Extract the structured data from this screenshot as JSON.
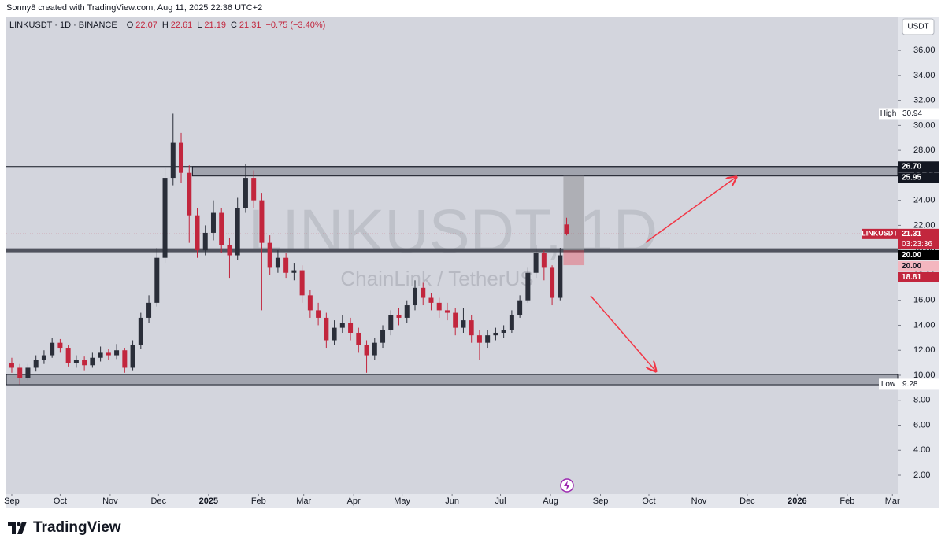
{
  "header": {
    "credit": "Sonny8 created with TradingView.com, Aug 11, 2025 22:36 UTC+2"
  },
  "footer": {
    "brand": "TradingView"
  },
  "chart_data": {
    "type": "candlestick",
    "symbol": "LINKUSDT · 1D · BINANCE",
    "legend": {
      "o": "O",
      "h": "H",
      "l": "L",
      "c": "C",
      "change": "−0.75 (−3.40%)"
    },
    "watermark": "LINKUSDT, 1D",
    "watermark_sub": "ChainLink / TetherUS",
    "currency": "USDT",
    "up_color": "#2a2e39",
    "down_color": "#c2263d",
    "x": [
      0,
      5,
      10,
      15,
      20,
      25,
      30,
      35,
      40,
      45,
      50,
      55,
      60,
      65,
      70,
      75,
      80,
      85,
      90,
      95,
      100,
      105,
      110,
      115,
      120,
      125,
      130,
      135,
      140,
      145,
      150,
      155,
      160,
      165,
      170,
      175,
      180,
      185,
      190,
      195,
      200,
      205,
      210,
      215,
      220,
      225,
      230,
      235,
      240,
      245,
      250,
      255,
      260,
      265,
      270,
      275,
      280,
      285,
      290,
      295,
      300,
      305,
      310,
      315,
      320,
      325,
      330,
      335,
      340,
      344
    ],
    "open": [
      11.0,
      10.6,
      9.8,
      10.6,
      11.2,
      11.6,
      12.6,
      12.2,
      11.0,
      11.2,
      10.8,
      11.4,
      11.8,
      11.6,
      12.0,
      10.6,
      12.4,
      14.6,
      15.8,
      19.4,
      25.8,
      28.6,
      26.2,
      22.8,
      20.0,
      21.4,
      23.0,
      20.4,
      19.6,
      23.4,
      25.8,
      24.0,
      20.6,
      18.6,
      19.4,
      18.2,
      18.4,
      16.4,
      15.2,
      14.6,
      12.8,
      13.8,
      14.2,
      13.4,
      12.4,
      11.6,
      12.6,
      13.6,
      14.8,
      14.6,
      15.6,
      17.0,
      16.2,
      15.8,
      15.2,
      15.0,
      13.8,
      14.4,
      13.2,
      12.6,
      13.2,
      13.4,
      13.6,
      14.8,
      16.0,
      18.2,
      19.8,
      18.6,
      16.2,
      22.07
    ],
    "high": [
      11.4,
      10.9,
      10.9,
      11.6,
      12.0,
      13.0,
      12.9,
      12.4,
      11.6,
      11.5,
      11.8,
      12.3,
      12.1,
      12.5,
      12.2,
      12.8,
      15.0,
      16.4,
      20.2,
      26.6,
      30.94,
      29.4,
      26.8,
      23.4,
      22.0,
      24.0,
      23.4,
      21.0,
      24.2,
      26.9,
      26.4,
      24.6,
      21.2,
      20.0,
      19.8,
      19.0,
      18.8,
      16.8,
      15.8,
      15.0,
      14.4,
      14.8,
      14.6,
      13.8,
      12.8,
      13.0,
      14.0,
      15.2,
      15.4,
      16.0,
      17.6,
      17.4,
      16.6,
      16.2,
      15.8,
      15.4,
      15.4,
      14.8,
      13.6,
      13.6,
      13.8,
      14.0,
      15.2,
      16.4,
      18.6,
      20.4,
      20.0,
      18.8,
      20.2,
      22.61
    ],
    "low": [
      10.2,
      9.28,
      9.6,
      10.3,
      10.9,
      11.4,
      11.8,
      10.7,
      10.6,
      10.4,
      10.6,
      11.1,
      11.2,
      11.3,
      10.2,
      10.4,
      12.1,
      14.2,
      15.5,
      19.0,
      25.2,
      25.4,
      20.6,
      19.4,
      19.6,
      20.8,
      19.8,
      17.8,
      19.2,
      23.0,
      23.4,
      15.2,
      18.0,
      18.2,
      17.8,
      17.6,
      15.8,
      14.6,
      14.0,
      12.2,
      12.4,
      13.4,
      12.8,
      11.8,
      10.2,
      11.2,
      12.2,
      13.2,
      14.0,
      14.2,
      15.2,
      15.6,
      15.2,
      14.6,
      14.4,
      13.2,
      13.4,
      12.6,
      11.2,
      12.2,
      12.8,
      13.0,
      13.4,
      14.6,
      15.8,
      17.8,
      17.6,
      15.6,
      16.0,
      21.19
    ],
    "close": [
      10.6,
      9.8,
      10.6,
      11.2,
      11.6,
      12.6,
      12.2,
      11.0,
      11.2,
      10.8,
      11.4,
      11.8,
      11.6,
      12.0,
      10.6,
      12.4,
      14.6,
      15.8,
      19.4,
      25.8,
      28.6,
      26.2,
      22.8,
      20.0,
      21.4,
      23.0,
      20.4,
      19.6,
      23.4,
      25.8,
      24.0,
      20.6,
      18.6,
      19.4,
      18.2,
      18.4,
      16.4,
      15.2,
      14.6,
      12.8,
      13.8,
      14.2,
      13.4,
      12.4,
      11.6,
      12.6,
      13.6,
      14.8,
      14.6,
      15.6,
      17.0,
      16.2,
      15.8,
      15.2,
      15.0,
      13.8,
      14.4,
      13.2,
      12.6,
      13.2,
      13.4,
      13.6,
      14.8,
      16.0,
      18.2,
      19.8,
      18.6,
      16.2,
      19.6,
      21.31
    ],
    "xlim": [
      -3.4,
      549.3
    ],
    "xticks": [
      {
        "value": 0,
        "label": "Sep"
      },
      {
        "value": 30,
        "label": "Oct"
      },
      {
        "value": 61,
        "label": "Nov"
      },
      {
        "value": 91,
        "label": "Dec"
      },
      {
        "value": 122,
        "label": "2025"
      },
      {
        "value": 153,
        "label": "Feb"
      },
      {
        "value": 181,
        "label": "Mar"
      },
      {
        "value": 212,
        "label": "Apr"
      },
      {
        "value": 242,
        "label": "May"
      },
      {
        "value": 273,
        "label": "Jun"
      },
      {
        "value": 303,
        "label": "Jul"
      },
      {
        "value": 334,
        "label": "Aug"
      },
      {
        "value": 365,
        "label": "Sep"
      },
      {
        "value": 395,
        "label": "Oct"
      },
      {
        "value": 426,
        "label": "Nov"
      },
      {
        "value": 456,
        "label": "Dec"
      },
      {
        "value": 487,
        "label": "2026"
      },
      {
        "value": 518,
        "label": "Feb"
      },
      {
        "value": 546,
        "label": "Mar"
      }
    ],
    "ylim": [
      0.49,
      38.65
    ],
    "yticks": [
      {
        "value": 2,
        "label": "2.00"
      },
      {
        "value": 4,
        "label": "4.00"
      },
      {
        "value": 6,
        "label": "6.00"
      },
      {
        "value": 8,
        "label": "8.00"
      },
      {
        "value": 10,
        "label": "10.00"
      },
      {
        "value": 12,
        "label": "12.00"
      },
      {
        "value": 14,
        "label": "14.00"
      },
      {
        "value": 16,
        "label": "16.00"
      },
      {
        "value": 18,
        "label": "18.00"
      },
      {
        "value": 20,
        "label": "20.00"
      },
      {
        "value": 22,
        "label": "22.00"
      },
      {
        "value": 24,
        "label": "24.00"
      },
      {
        "value": 26,
        "label": "26.00"
      },
      {
        "value": 28,
        "label": "28.00"
      },
      {
        "value": 30,
        "label": "30.00"
      },
      {
        "value": 32,
        "label": "32.00"
      },
      {
        "value": 34,
        "label": "34.00"
      },
      {
        "value": 36,
        "label": "36.00"
      }
    ],
    "high_marker": {
      "name": "High",
      "value": 30.94
    },
    "low_marker": {
      "name": "Low",
      "value": 9.28
    },
    "zones": [
      {
        "from": 112,
        "low": {
          "value": 25.95,
          "label": "25.95"
        },
        "high": {
          "value": 26.7,
          "label": "26.70"
        }
      },
      {
        "from": -3.4,
        "low": 9.24,
        "high": 10.06
      }
    ],
    "levels": [
      {
        "value": 26.7
      },
      {
        "value": 20.0,
        "label": "20.00"
      }
    ],
    "position": {
      "from": 342,
      "to": 355,
      "target": 25.95,
      "entry": {
        "value": 20.0,
        "label": "20.00"
      },
      "stop": {
        "value": 18.81,
        "label": "18.81"
      }
    },
    "last_price": {
      "name": "LINKUSDT",
      "countdown": "03:23:36"
    }
  }
}
